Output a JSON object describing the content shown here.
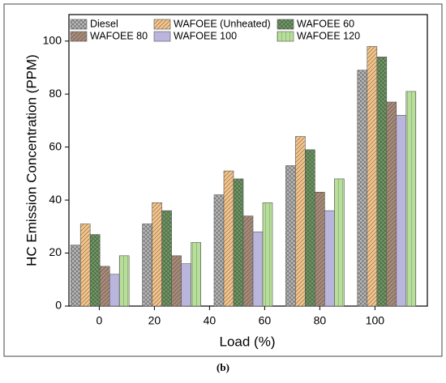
{
  "chart_data": {
    "type": "bar",
    "xlabel": "Load (%)",
    "ylabel": "HC Emission Concentration (PPM)",
    "caption": "(b)",
    "categories": [
      null,
      null,
      null,
      null,
      null
    ],
    "series": [
      {
        "name": "Diesel",
        "color": "#b8b8b8",
        "hatch": "cross",
        "values": [
          23,
          31,
          42,
          53,
          89
        ]
      },
      {
        "name": "WAFOEE (Unheated)",
        "color": "#f5c48a",
        "hatch": "diagonal",
        "values": [
          31,
          39,
          51,
          64,
          98
        ]
      },
      {
        "name": "WAFOEE 60",
        "color": "#6e9a62",
        "hatch": "cross",
        "values": [
          27,
          36,
          48,
          59,
          94
        ]
      },
      {
        "name": "WAFOEE 80",
        "color": "#a88b78",
        "hatch": "diagonal",
        "values": [
          15,
          19,
          34,
          43,
          77
        ]
      },
      {
        "name": "WAFOEE 100",
        "color": "#b9b5dd",
        "hatch": "none",
        "values": [
          12,
          16,
          28,
          36,
          72
        ]
      },
      {
        "name": "WAFOEE 120",
        "color": "#b7df9a",
        "hatch": "vertical",
        "values": [
          19,
          24,
          39,
          48,
          81
        ]
      }
    ],
    "xlim": [
      -11,
      119
    ],
    "xticks": [
      0,
      20,
      40,
      60,
      80,
      100
    ],
    "ylim": [
      0,
      110
    ],
    "yticks": [
      0,
      20,
      40,
      60,
      80,
      100
    ],
    "legend": "top"
  }
}
